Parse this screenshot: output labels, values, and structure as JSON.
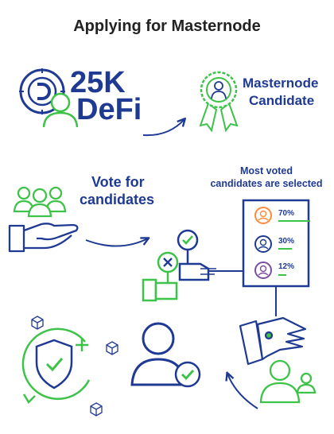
{
  "title": "Applying for Masternode",
  "stake": {
    "amount": "25K",
    "token": "DeFi"
  },
  "candidate": {
    "line1": "Masternode",
    "line2": "Candidate"
  },
  "vote": {
    "line1": "Vote for",
    "line2": "candidates"
  },
  "selected": {
    "line1": "Most voted",
    "line2": "candidates are selected"
  },
  "results": [
    {
      "pct": "70%",
      "share": 0.7,
      "color": "#ff8a3d"
    },
    {
      "pct": "30%",
      "share": 0.3,
      "color": "#1f3a93"
    },
    {
      "pct": "12%",
      "share": 0.12,
      "color": "#7b4fa0"
    }
  ],
  "colors": {
    "blue": "#1f3a93",
    "green": "#3ec24a"
  },
  "icons": [
    "coin-d-icon",
    "person-icon",
    "award-ribbon-icon",
    "people-group-icon",
    "open-hand-icon",
    "vote-check-sign-icon",
    "vote-cross-sign-icon",
    "ballot-board-icon",
    "robot-hand-icon",
    "user-check-icon",
    "shield-check-icon",
    "cube-icon"
  ]
}
